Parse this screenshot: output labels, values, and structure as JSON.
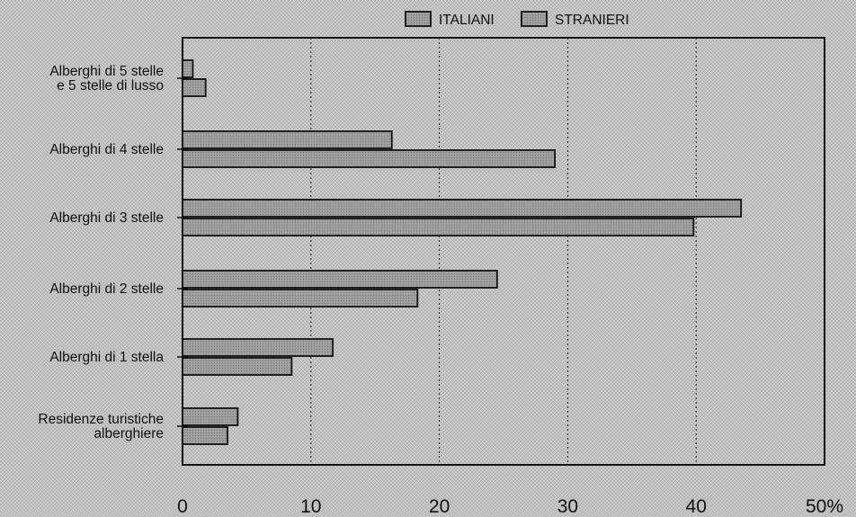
{
  "chart_data": {
    "type": "bar",
    "orientation": "horizontal",
    "title": "",
    "xlabel": "",
    "ylabel": "",
    "xlim": [
      0,
      50
    ],
    "x_ticks": [
      {
        "value": 0,
        "label": "0"
      },
      {
        "value": 10,
        "label": "10"
      },
      {
        "value": 20,
        "label": "20"
      },
      {
        "value": 30,
        "label": "30"
      },
      {
        "value": 40,
        "label": "40"
      },
      {
        "value": 50,
        "label": "50%"
      }
    ],
    "grid": "vertical dotted",
    "legend_position": "top",
    "categories": [
      [
        "Alberghi di 5 stelle",
        "e 5 stelle di lusso"
      ],
      [
        "Alberghi di 4 stelle"
      ],
      [
        "Alberghi di 3 stelle"
      ],
      [
        "Alberghi di 2 stelle"
      ],
      [
        "Alberghi di 1 stella"
      ],
      [
        "Residenze turistiche",
        "alberghiere"
      ]
    ],
    "series": [
      {
        "name": "ITALIANI",
        "values": [
          0.8,
          16.3,
          43.5,
          24.5,
          11.7,
          4.3
        ]
      },
      {
        "name": "STRANIERI",
        "values": [
          1.8,
          29.0,
          39.8,
          18.3,
          8.5,
          3.5
        ]
      }
    ],
    "colors": {
      "bar_fill": "#9a9a9a",
      "bar_stroke": "#111111",
      "plot_bg": "#c9c9c9",
      "grid": "#222222"
    }
  }
}
